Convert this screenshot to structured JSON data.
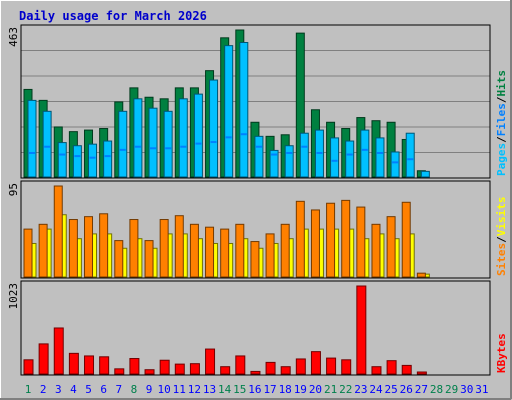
{
  "title": "Daily usage for March 2026",
  "colors": {
    "frame_bg": "#c0c0c0",
    "plot_bg": "#c0c0c0",
    "title": "#0000cc",
    "hits": "#008040",
    "files": "#0080ff",
    "pages": "#00c0ff",
    "visits": "#ffff00",
    "sites": "#ff8000",
    "kbytes": "#ff0000",
    "weekend_label": "#00804c",
    "weekday_label": "#0000ff"
  },
  "chart_data": [
    {
      "type": "bar",
      "panel": "top",
      "ymax_label": "463",
      "legend_parts": [
        {
          "text": "Pages",
          "color": "#00c0ff"
        },
        {
          "text": "/",
          "color": "#000000"
        },
        {
          "text": "Files",
          "color": "#0080ff"
        },
        {
          "text": "/",
          "color": "#000000"
        },
        {
          "text": "Hits",
          "color": "#008040"
        }
      ],
      "x": [
        1,
        2,
        3,
        4,
        5,
        6,
        7,
        8,
        9,
        10,
        11,
        12,
        13,
        14,
        15,
        16,
        17,
        18,
        19,
        20,
        21,
        22,
        23,
        24,
        25,
        26,
        27,
        28,
        29,
        30,
        31
      ],
      "series": [
        {
          "name": "Hits",
          "values": [
            280,
            245,
            160,
            145,
            150,
            155,
            240,
            285,
            255,
            250,
            285,
            285,
            340,
            445,
            470,
            175,
            130,
            135,
            460,
            215,
            175,
            155,
            190,
            180,
            175,
            120,
            20,
            0,
            0,
            0,
            0
          ]
        },
        {
          "name": "Files",
          "values": [
            80,
            100,
            75,
            70,
            65,
            70,
            90,
            100,
            95,
            95,
            100,
            110,
            115,
            130,
            140,
            100,
            75,
            80,
            100,
            80,
            55,
            75,
            90,
            80,
            50,
            60,
            0,
            0,
            0,
            0,
            0
          ]
        },
        {
          "name": "Pages",
          "values": [
            245,
            210,
            110,
            100,
            105,
            115,
            210,
            250,
            220,
            210,
            250,
            265,
            310,
            420,
            430,
            130,
            85,
            100,
            140,
            150,
            125,
            115,
            150,
            125,
            80,
            140,
            18,
            0,
            0,
            0,
            0
          ]
        }
      ]
    },
    {
      "type": "bar",
      "panel": "middle",
      "ymax_label": "95",
      "legend_parts": [
        {
          "text": "Sites",
          "color": "#ff8000"
        },
        {
          "text": "/",
          "color": "#000000"
        },
        {
          "text": "Visits",
          "color": "#ffff00"
        }
      ],
      "x": [
        1,
        2,
        3,
        4,
        5,
        6,
        7,
        8,
        9,
        10,
        11,
        12,
        13,
        14,
        15,
        16,
        17,
        18,
        19,
        20,
        21,
        22,
        23,
        24,
        25,
        26,
        27,
        28,
        29,
        30,
        31
      ],
      "series": [
        {
          "name": "Visits",
          "values": [
            35,
            50,
            65,
            40,
            45,
            45,
            30,
            40,
            30,
            45,
            45,
            40,
            35,
            35,
            40,
            30,
            35,
            40,
            50,
            50,
            50,
            50,
            40,
            45,
            40,
            45,
            3,
            0,
            0,
            0,
            0
          ]
        },
        {
          "name": "Sites",
          "values": [
            50,
            55,
            95,
            60,
            63,
            66,
            38,
            60,
            38,
            60,
            64,
            55,
            52,
            50,
            55,
            37,
            45,
            55,
            79,
            70,
            77,
            80,
            73,
            55,
            63,
            78,
            4,
            0,
            0,
            0,
            0
          ]
        }
      ]
    },
    {
      "type": "bar",
      "panel": "bottom",
      "ymax_label": "1023",
      "legend_parts": [
        {
          "text": "KBytes",
          "color": "#ff0000"
        }
      ],
      "x": [
        1,
        2,
        3,
        4,
        5,
        6,
        7,
        8,
        9,
        10,
        11,
        12,
        13,
        14,
        15,
        16,
        17,
        18,
        19,
        20,
        21,
        22,
        23,
        24,
        25,
        26,
        27,
        28,
        29,
        30,
        31
      ],
      "series": [
        {
          "name": "KBytes",
          "values": [
            165,
            350,
            535,
            240,
            210,
            200,
            60,
            180,
            50,
            160,
            115,
            120,
            290,
            85,
            210,
            30,
            135,
            85,
            175,
            260,
            185,
            165,
            1023,
            85,
            155,
            100,
            10,
            0,
            0,
            0,
            0
          ]
        }
      ]
    }
  ],
  "x_labels": [
    {
      "text": "1",
      "weekend": true
    },
    {
      "text": "2",
      "weekend": false
    },
    {
      "text": "3",
      "weekend": false
    },
    {
      "text": "4",
      "weekend": false
    },
    {
      "text": "5",
      "weekend": false
    },
    {
      "text": "6",
      "weekend": false
    },
    {
      "text": "7",
      "weekend": false
    },
    {
      "text": "8",
      "weekend": true
    },
    {
      "text": "9",
      "weekend": false
    },
    {
      "text": "10",
      "weekend": false
    },
    {
      "text": "11",
      "weekend": false
    },
    {
      "text": "12",
      "weekend": false
    },
    {
      "text": "13",
      "weekend": false
    },
    {
      "text": "14",
      "weekend": true
    },
    {
      "text": "15",
      "weekend": true
    },
    {
      "text": "16",
      "weekend": false
    },
    {
      "text": "17",
      "weekend": false
    },
    {
      "text": "18",
      "weekend": false
    },
    {
      "text": "19",
      "weekend": false
    },
    {
      "text": "20",
      "weekend": false
    },
    {
      "text": "21",
      "weekend": true
    },
    {
      "text": "22",
      "weekend": true
    },
    {
      "text": "23",
      "weekend": false
    },
    {
      "text": "24",
      "weekend": false
    },
    {
      "text": "25",
      "weekend": false
    },
    {
      "text": "26",
      "weekend": false
    },
    {
      "text": "27",
      "weekend": false
    },
    {
      "text": "28",
      "weekend": true
    },
    {
      "text": "29",
      "weekend": true
    },
    {
      "text": "30",
      "weekend": false
    },
    {
      "text": "31",
      "weekend": false
    }
  ]
}
